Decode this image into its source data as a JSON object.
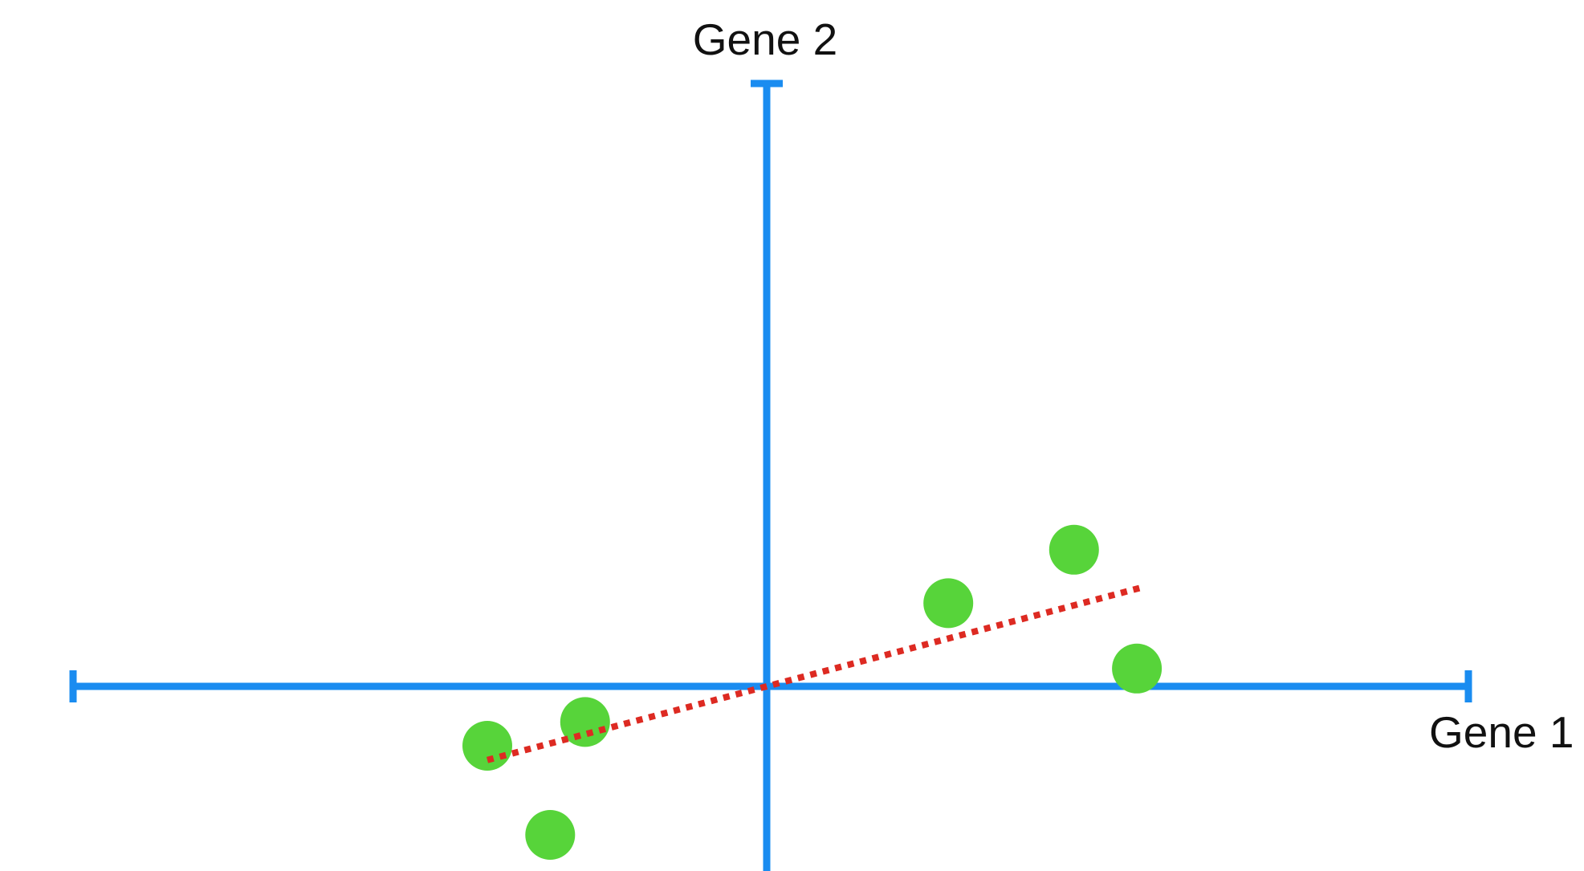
{
  "chart_data": {
    "type": "scatter",
    "xlabel": "Gene 1",
    "ylabel": "Gene 2",
    "xlim": [
      -10,
      10
    ],
    "ylim": [
      -10,
      10
    ],
    "grid": false,
    "axes_through_origin": true,
    "points": [
      {
        "x": -4.0,
        "y": -1.0
      },
      {
        "x": -2.6,
        "y": -0.6
      },
      {
        "x": -3.1,
        "y": -2.5
      },
      {
        "x": 2.6,
        "y": 1.4
      },
      {
        "x": 4.4,
        "y": 2.3
      },
      {
        "x": 5.3,
        "y": 0.3
      }
    ],
    "fit_line": {
      "slope": 0.31,
      "x_range": [
        -4.0,
        5.4
      ],
      "style": "dotted"
    }
  },
  "colors": {
    "axis": "#1a8cf0",
    "points": "#57d43a",
    "fit_line": "#dd2a22",
    "background": "#ffffff",
    "text": "#111111"
  }
}
